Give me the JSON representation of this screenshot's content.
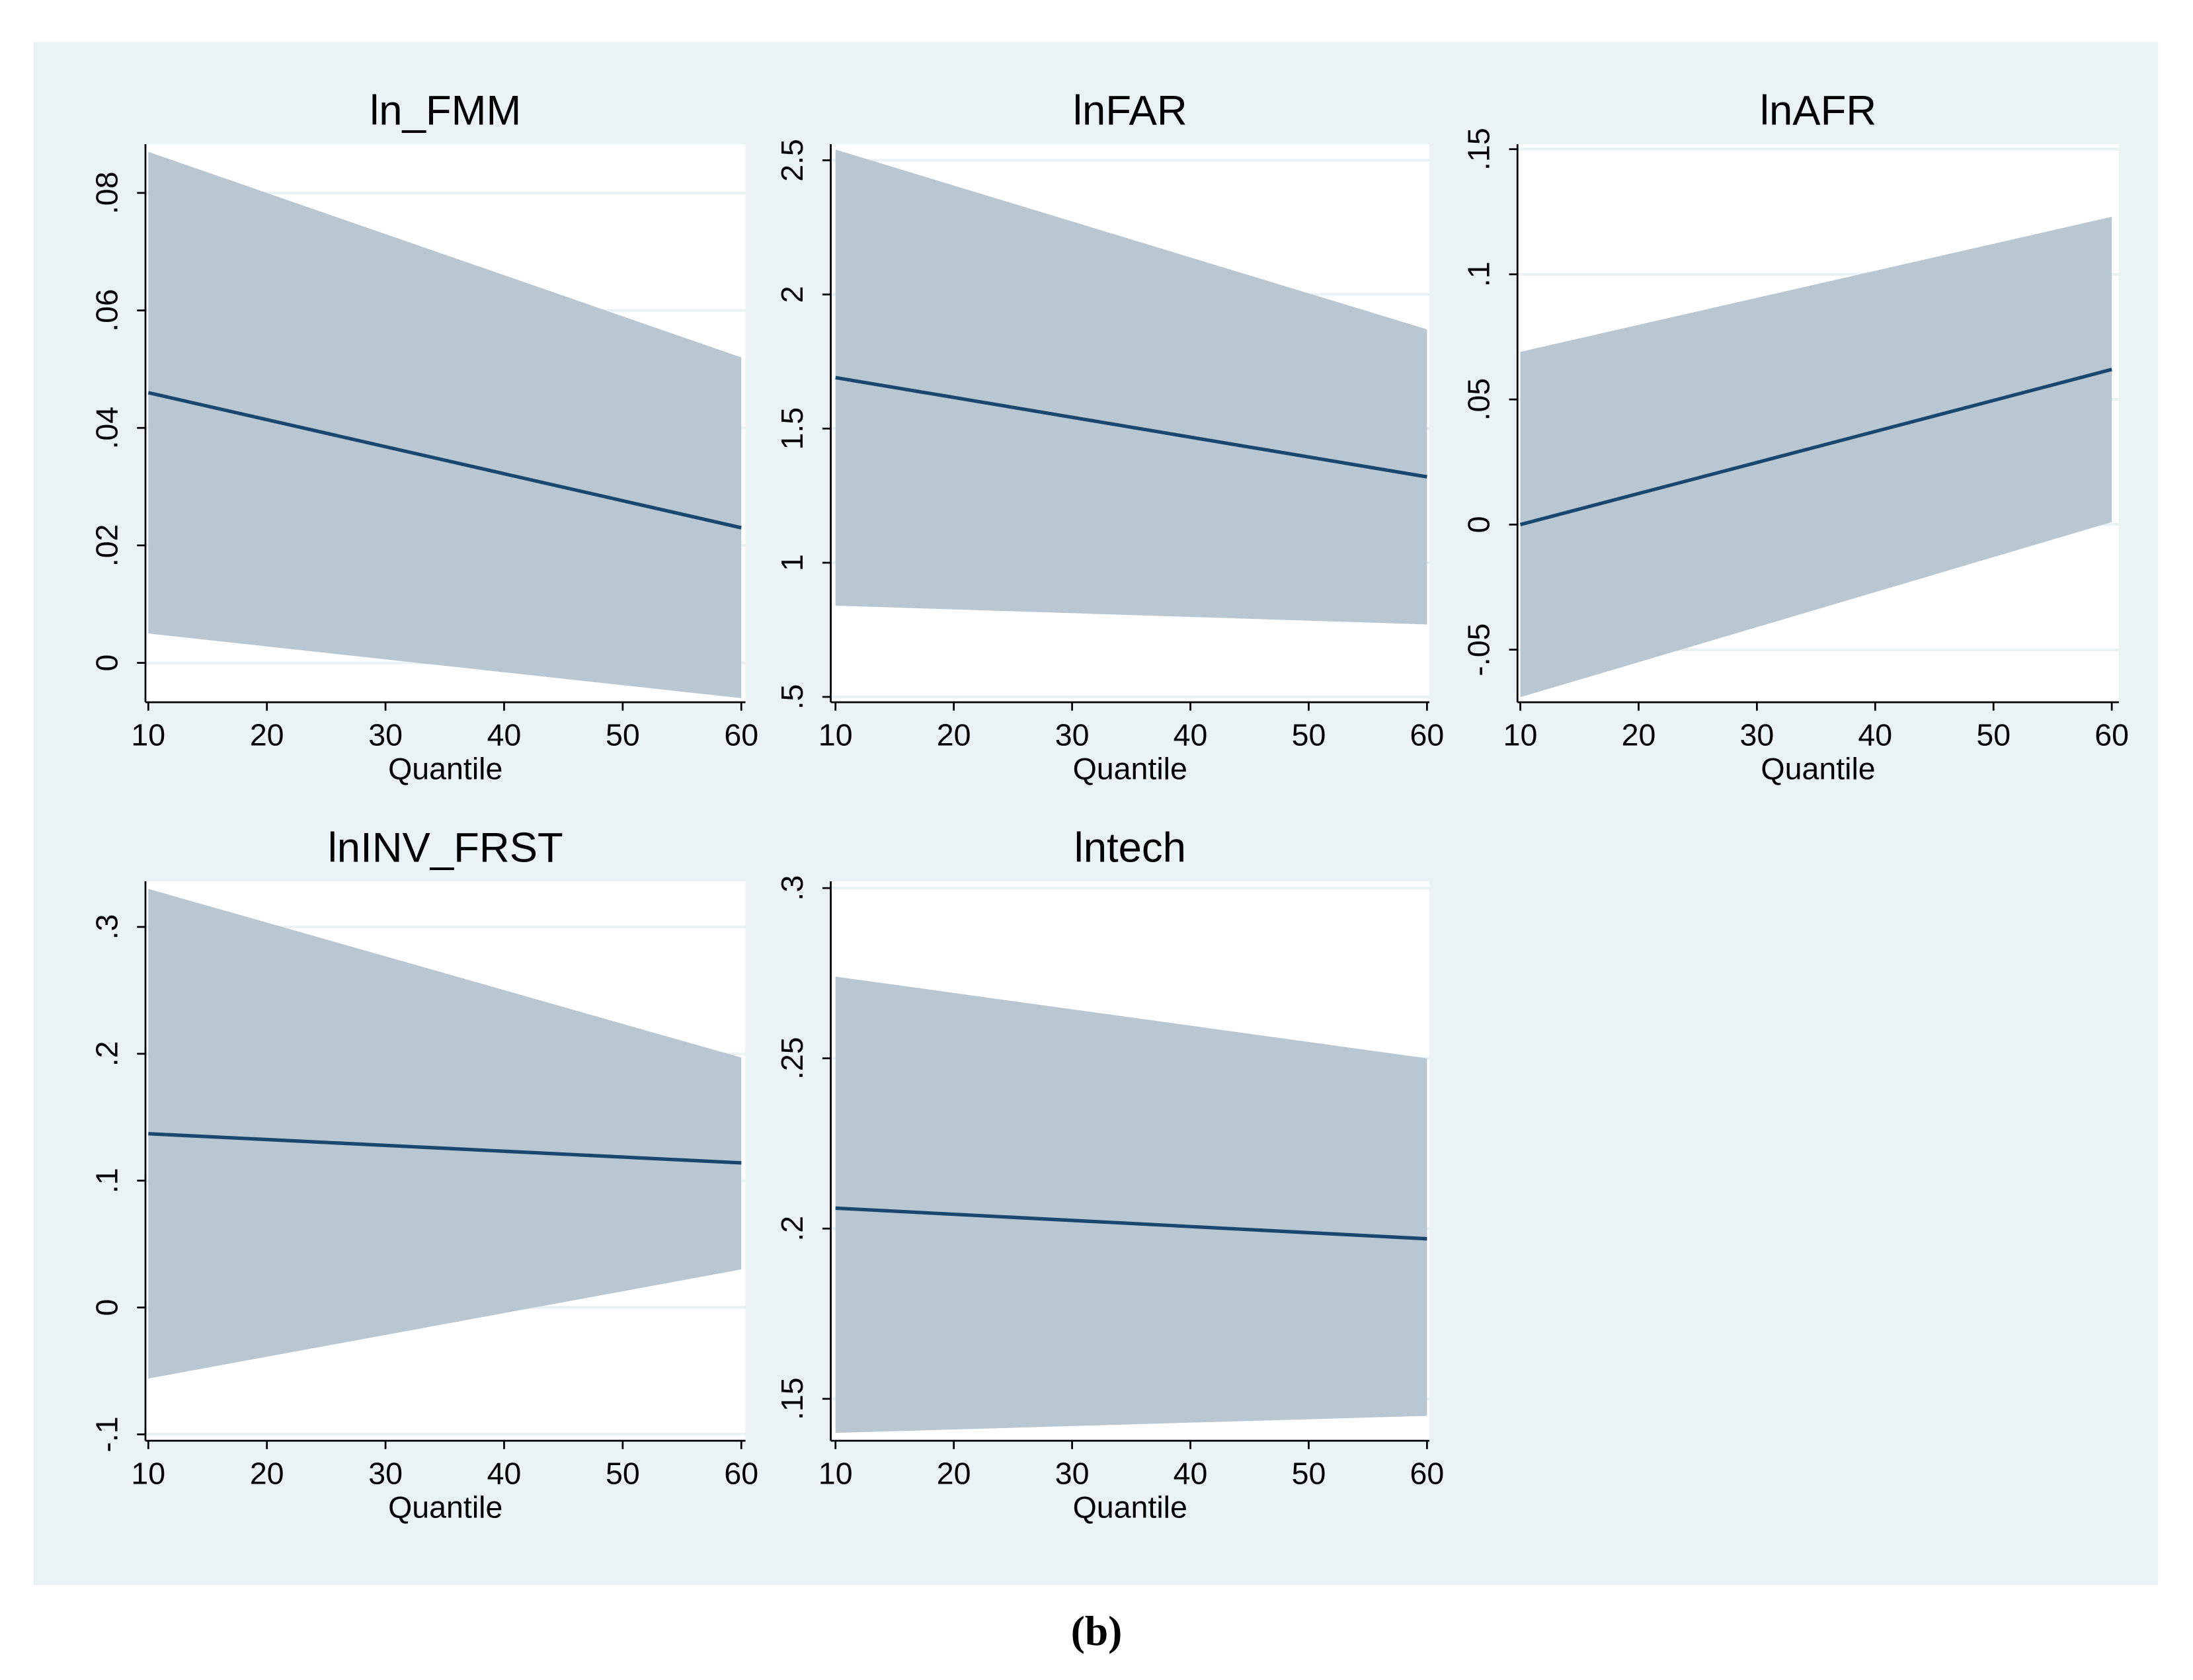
{
  "caption": "(b)",
  "chart_data": [
    {
      "type": "line",
      "title": "ln_FMM",
      "x_label": "Quantile",
      "x": [
        10,
        60
      ],
      "values": [
        0.046,
        0.023
      ],
      "color": "#1a476f",
      "band": {
        "lower": [
          0.005,
          -0.006
        ],
        "upper": [
          0.087,
          0.052
        ],
        "color": "#b9c7d2"
      },
      "xlim": [
        9.76,
        60.35
      ],
      "xticks": [
        10,
        20,
        30,
        40,
        50,
        60
      ],
      "ylim": [
        -0.0067,
        0.0883
      ],
      "yticks": [
        0,
        {
          "value": 0.02,
          "label": ".02"
        },
        {
          "value": 0.04,
          "label": ".04"
        },
        {
          "value": 0.06,
          "label": ".06"
        },
        {
          "value": 0.08,
          "label": ".08"
        }
      ],
      "grid": true
    },
    {
      "type": "line",
      "title": "lnFAR",
      "x_label": "Quantile",
      "x": [
        10,
        60
      ],
      "values": [
        1.69,
        1.32
      ],
      "color": "#1a476f",
      "band": {
        "lower": [
          0.84,
          0.77
        ],
        "upper": [
          2.54,
          1.87
        ],
        "color": "#b9c7d2"
      },
      "xlim": [
        9.6,
        60.2
      ],
      "xticks": [
        10,
        20,
        30,
        40,
        50,
        60
      ],
      "ylim": [
        0.48,
        2.56
      ],
      "yticks": [
        {
          "value": 0.5,
          "label": ".5"
        },
        1,
        1.5,
        2,
        2.5
      ],
      "grid": true
    },
    {
      "type": "line",
      "title": "lnAFR",
      "x_label": "Quantile",
      "x": [
        10,
        60
      ],
      "values": [
        0,
        0.062
      ],
      "color": "#1a476f",
      "band": {
        "lower": [
          -0.069,
          0.001
        ],
        "upper": [
          0.069,
          0.123
        ],
        "color": "#b9c7d2"
      },
      "xlim": [
        9.76,
        60.6
      ],
      "xticks": [
        10,
        20,
        30,
        40,
        50,
        60
      ],
      "ylim": [
        -0.071,
        0.152
      ],
      "yticks": [
        {
          "value": -0.05,
          "label": "-.05"
        },
        0,
        {
          "value": 0.05,
          "label": ".05"
        },
        {
          "value": 0.1,
          "label": ".1"
        },
        {
          "value": 0.15,
          "label": ".15"
        }
      ],
      "grid": true
    },
    {
      "type": "line",
      "title": "lnINV_FRST",
      "x_label": "Quantile",
      "x": [
        10,
        60
      ],
      "values": [
        0.137,
        0.114
      ],
      "color": "#1a476f",
      "band": {
        "lower": [
          -0.056,
          0.03
        ],
        "upper": [
          0.33,
          0.197
        ],
        "color": "#b9c7d2"
      },
      "xlim": [
        9.76,
        60.35
      ],
      "xticks": [
        10,
        20,
        30,
        40,
        50,
        60
      ],
      "ylim": [
        -0.105,
        0.336
      ],
      "yticks": [
        {
          "value": -0.1,
          "label": "-.1"
        },
        0,
        {
          "value": 0.1,
          "label": ".1"
        },
        {
          "value": 0.2,
          "label": ".2"
        },
        {
          "value": 0.3,
          "label": ".3"
        }
      ],
      "grid": true
    },
    {
      "type": "line",
      "title": "lntech",
      "x_label": "Quantile",
      "x": [
        10,
        60
      ],
      "values": [
        0.206,
        0.197
      ],
      "color": "#1a476f",
      "band": {
        "lower": [
          0.14,
          0.145
        ],
        "upper": [
          0.274,
          0.25
        ],
        "color": "#b9c7d2"
      },
      "xlim": [
        9.6,
        60.2
      ],
      "xticks": [
        10,
        20,
        30,
        40,
        50,
        60
      ],
      "ylim": [
        0.1377,
        0.302
      ],
      "yticks": [
        {
          "value": 0.15,
          "label": ".15"
        },
        {
          "value": 0.2,
          "label": ".2"
        },
        {
          "value": 0.25,
          "label": ".25"
        },
        {
          "value": 0.3,
          "label": ".3"
        }
      ],
      "grid": true
    }
  ]
}
